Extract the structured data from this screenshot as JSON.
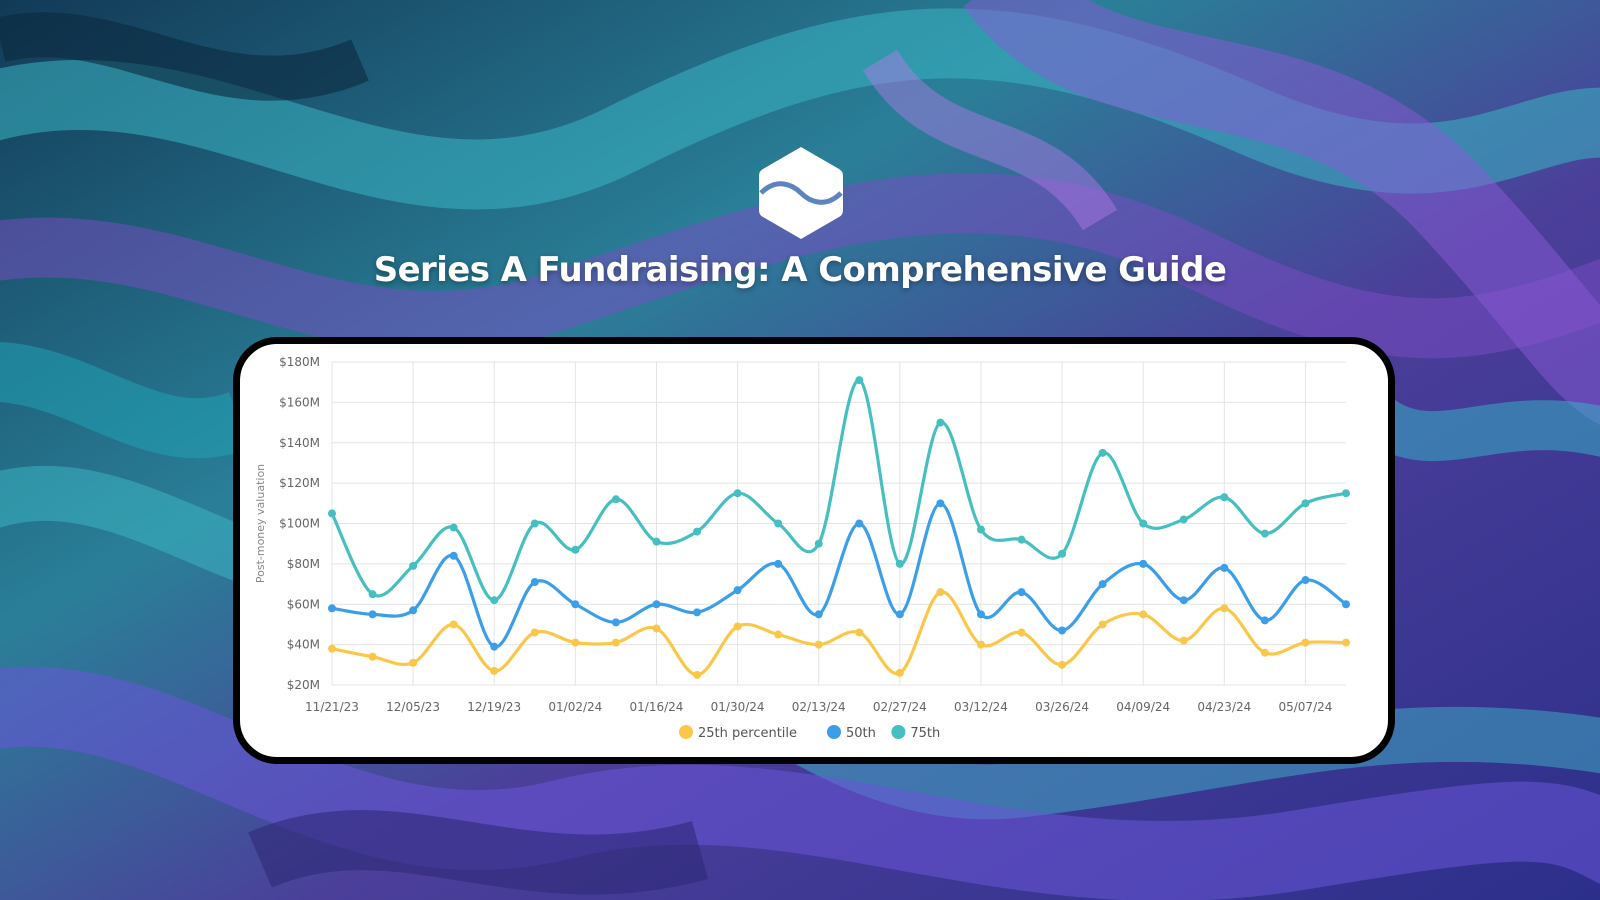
{
  "title": "Series A Fundraising: A Comprehensive Guide",
  "icons": {
    "logo": "brand-logo-icon"
  },
  "colors": {
    "p25": "#fac749",
    "p50": "#3a9ee9",
    "p75": "#46bfc0",
    "grid": "#e4e4e4",
    "axis_text": "#666666"
  },
  "chart_data": {
    "type": "line",
    "title": "",
    "xlabel": "",
    "ylabel": "Post-money valuation",
    "ylim": [
      20,
      180
    ],
    "yticks": [
      20,
      40,
      60,
      80,
      100,
      120,
      140,
      160,
      180
    ],
    "ytick_labels": [
      "$20M",
      "$40M",
      "$60M",
      "$80M",
      "$100M",
      "$120M",
      "$140M",
      "$160M",
      "$180M"
    ],
    "x": [
      "11/21/23",
      "11/28/23",
      "12/05/23",
      "12/12/23",
      "12/19/23",
      "12/26/23",
      "01/02/24",
      "01/09/24",
      "01/16/24",
      "01/23/24",
      "01/30/24",
      "02/06/24",
      "02/13/24",
      "02/20/24",
      "02/27/24",
      "03/05/24",
      "03/12/24",
      "03/19/24",
      "03/26/24",
      "04/02/24",
      "04/09/24",
      "04/16/24",
      "04/23/24",
      "04/30/24",
      "05/07/24",
      "05/14/24"
    ],
    "x_tick_labels": [
      "11/21/23",
      "12/05/23",
      "12/19/23",
      "01/02/24",
      "01/16/24",
      "01/30/24",
      "02/13/24",
      "02/27/24",
      "03/12/24",
      "03/26/24",
      "04/09/24",
      "04/23/24",
      "05/07/24"
    ],
    "grid": true,
    "legend_position": "bottom-center",
    "series": [
      {
        "name": "25th percentile",
        "color_key": "p25",
        "values": [
          38,
          34,
          31,
          50,
          27,
          46,
          41,
          41,
          48,
          25,
          49,
          45,
          40,
          46,
          26,
          66,
          40,
          46,
          30,
          50,
          55,
          42,
          58,
          36,
          41,
          41
        ]
      },
      {
        "name": "50th",
        "color_key": "p50",
        "values": [
          58,
          55,
          57,
          84,
          39,
          71,
          60,
          51,
          60,
          56,
          67,
          80,
          55,
          100,
          55,
          110,
          55,
          66,
          47,
          70,
          80,
          62,
          78,
          52,
          72,
          60
        ]
      },
      {
        "name": "75th",
        "color_key": "p75",
        "values": [
          105,
          65,
          79,
          98,
          62,
          100,
          87,
          112,
          91,
          96,
          115,
          100,
          90,
          171,
          80,
          150,
          97,
          92,
          85,
          135,
          100,
          102,
          113,
          95,
          110,
          115
        ]
      }
    ]
  }
}
